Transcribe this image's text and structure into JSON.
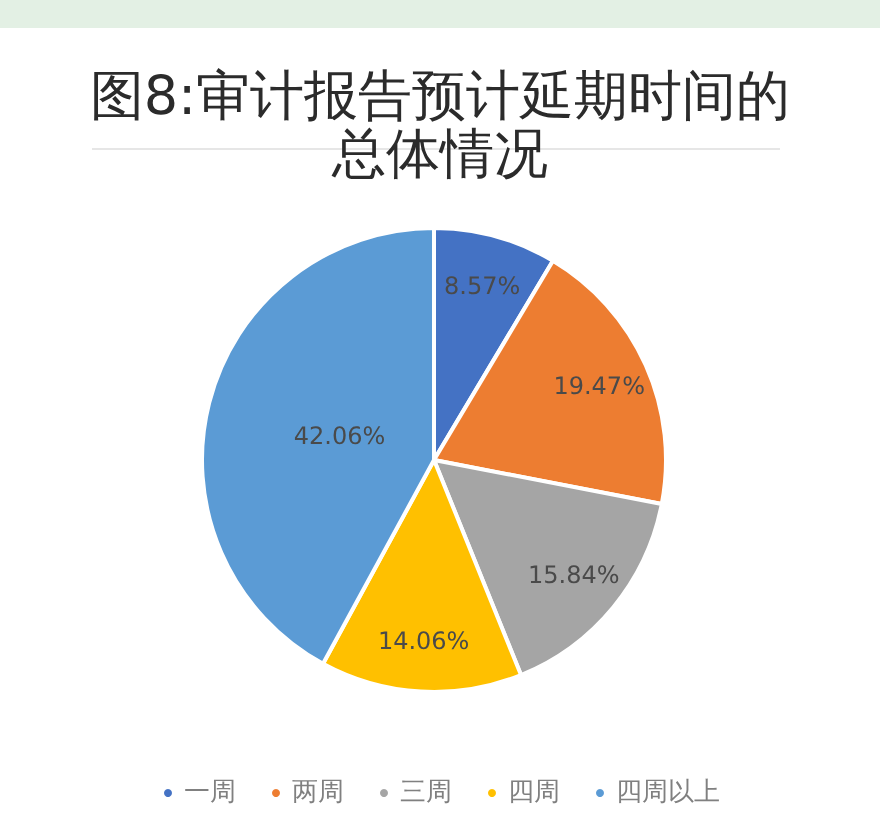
{
  "chart_data": {
    "type": "pie",
    "title": "图8:审计报告预计延期时间的总体情况",
    "categories": [
      "一周",
      "两周",
      "三周",
      "四周",
      "四周以上"
    ],
    "values": [
      8.57,
      19.47,
      15.84,
      14.06,
      42.06
    ],
    "colors": [
      "#4472c4",
      "#ed7d31",
      "#a5a5a5",
      "#ffc000",
      "#5b9bd5"
    ],
    "value_labels": [
      "8.57%",
      "19.47%",
      "15.84%",
      "14.06%",
      "42.06%"
    ],
    "legend": "bottom"
  }
}
